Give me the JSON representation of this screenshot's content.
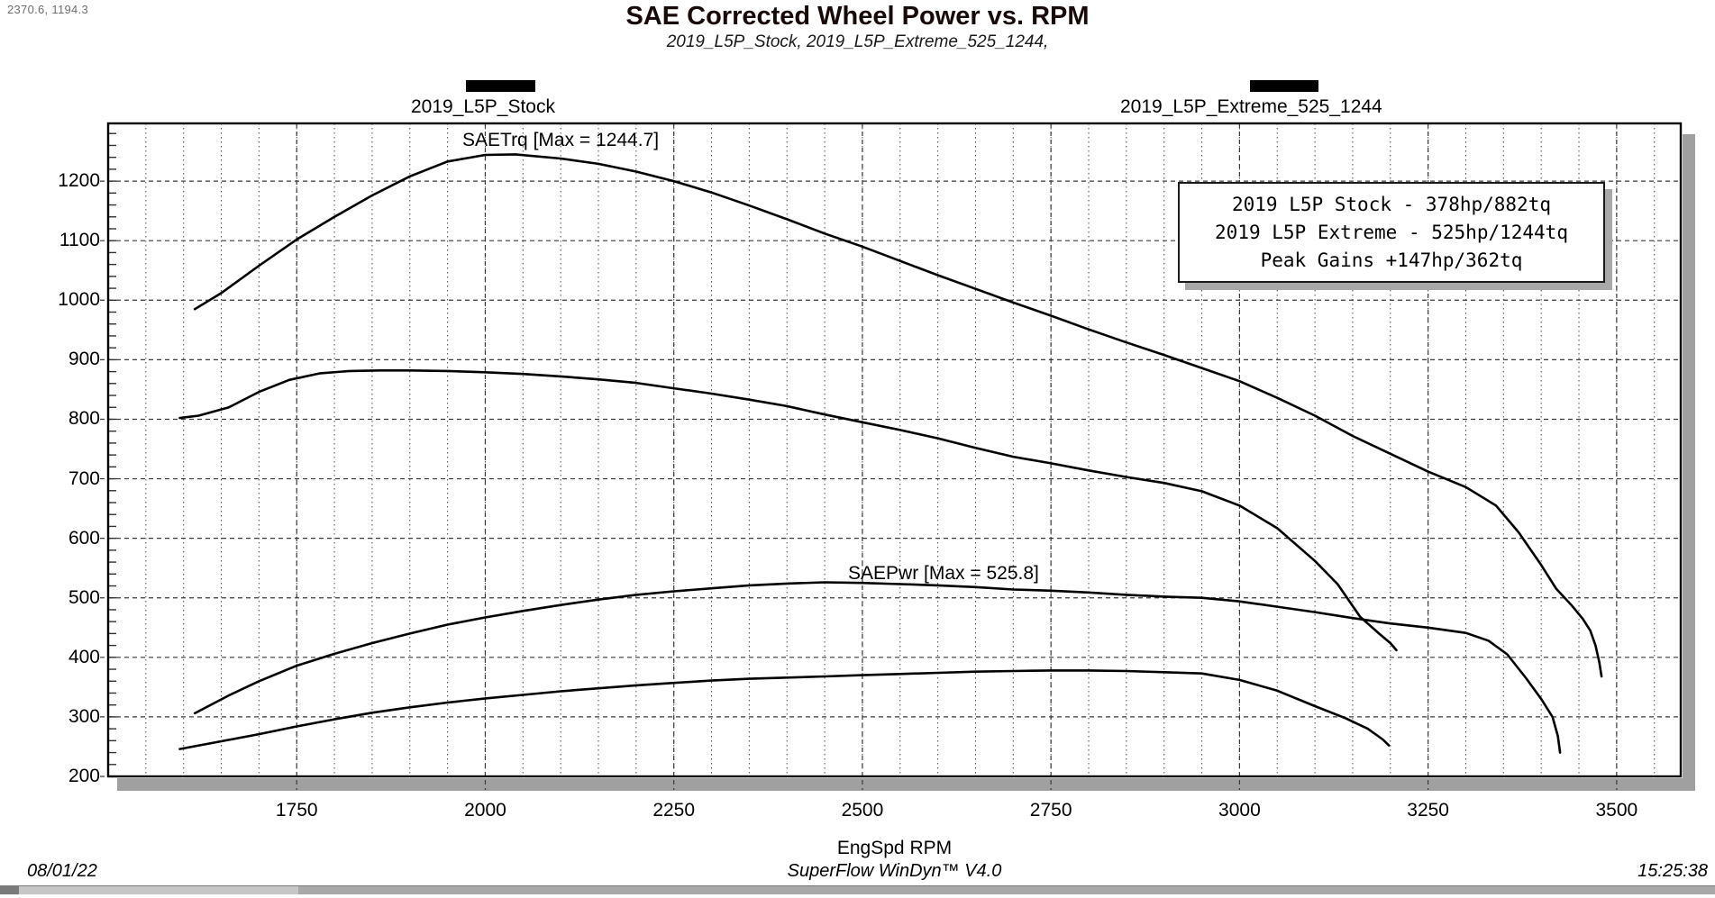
{
  "window": {
    "cursor_readout": "2370.6, 1194.3"
  },
  "header": {
    "title": "SAE Corrected Wheel Power vs. RPM",
    "subtitle": "2019_L5P_Stock, 2019_L5P_Extreme_525_1244,"
  },
  "legend": {
    "items": [
      {
        "label": "2019_L5P_Stock",
        "swatch_color": "#000000"
      },
      {
        "label": "2019_L5P_Extreme_525_1244",
        "swatch_color": "#000000"
      }
    ]
  },
  "annotations": {
    "torque_max_label": "SAETrq [Max = 1244.7]",
    "power_max_label": "SAEPwr [Max = 525.8]"
  },
  "info_box": {
    "lines": [
      "2019 L5P Stock - 378hp/882tq",
      "2019 L5P Extreme - 525hp/1244tq",
      "Peak Gains +147hp/362tq"
    ]
  },
  "chart_data": {
    "type": "line",
    "title": "SAE Corrected Wheel Power vs. RPM",
    "xlabel": "EngSpd RPM",
    "ylabel": "",
    "xlim": [
      1500,
      3585
    ],
    "ylim": [
      200,
      1297
    ],
    "x_ticks": [
      1750,
      2000,
      2250,
      2500,
      2750,
      3000,
      3250,
      3500
    ],
    "y_ticks": [
      200,
      300,
      400,
      500,
      600,
      700,
      800,
      900,
      1000,
      1100,
      1200
    ],
    "x_minor_step": 50,
    "y_minor_step": 20,
    "grid": true,
    "line_color": "#000000",
    "series": [
      {
        "name": "SAETrq 2019_L5P_Extreme_525_1244",
        "peak": 1244.7,
        "points": [
          [
            1615,
            985
          ],
          [
            1650,
            1012
          ],
          [
            1700,
            1058
          ],
          [
            1750,
            1102
          ],
          [
            1800,
            1140
          ],
          [
            1850,
            1176
          ],
          [
            1900,
            1208
          ],
          [
            1950,
            1233
          ],
          [
            2000,
            1244
          ],
          [
            2040,
            1245
          ],
          [
            2100,
            1238
          ],
          [
            2150,
            1229
          ],
          [
            2200,
            1216
          ],
          [
            2250,
            1200
          ],
          [
            2300,
            1181
          ],
          [
            2350,
            1159
          ],
          [
            2400,
            1136
          ],
          [
            2450,
            1112
          ],
          [
            2500,
            1090
          ],
          [
            2550,
            1066
          ],
          [
            2600,
            1042
          ],
          [
            2650,
            1019
          ],
          [
            2700,
            996
          ],
          [
            2750,
            974
          ],
          [
            2800,
            951
          ],
          [
            2850,
            929
          ],
          [
            2900,
            908
          ],
          [
            2950,
            886
          ],
          [
            3000,
            864
          ],
          [
            3050,
            836
          ],
          [
            3100,
            806
          ],
          [
            3150,
            772
          ],
          [
            3200,
            742
          ],
          [
            3250,
            712
          ],
          [
            3300,
            686
          ],
          [
            3340,
            655
          ],
          [
            3370,
            610
          ],
          [
            3400,
            555
          ],
          [
            3420,
            515
          ],
          [
            3440,
            488
          ],
          [
            3455,
            465
          ],
          [
            3465,
            445
          ],
          [
            3472,
            420
          ],
          [
            3477,
            392
          ],
          [
            3480,
            368
          ]
        ]
      },
      {
        "name": "SAETrq 2019_L5P_Stock",
        "peak": 882,
        "points": [
          [
            1595,
            802
          ],
          [
            1620,
            806
          ],
          [
            1660,
            820
          ],
          [
            1700,
            846
          ],
          [
            1740,
            866
          ],
          [
            1780,
            877
          ],
          [
            1820,
            881
          ],
          [
            1860,
            882
          ],
          [
            1900,
            882
          ],
          [
            1950,
            881
          ],
          [
            2000,
            879
          ],
          [
            2050,
            876
          ],
          [
            2100,
            872
          ],
          [
            2150,
            867
          ],
          [
            2200,
            861
          ],
          [
            2250,
            852
          ],
          [
            2300,
            843
          ],
          [
            2350,
            833
          ],
          [
            2400,
            822
          ],
          [
            2450,
            808
          ],
          [
            2500,
            795
          ],
          [
            2550,
            782
          ],
          [
            2600,
            768
          ],
          [
            2650,
            752
          ],
          [
            2700,
            737
          ],
          [
            2750,
            726
          ],
          [
            2800,
            714
          ],
          [
            2850,
            703
          ],
          [
            2900,
            693
          ],
          [
            2950,
            679
          ],
          [
            3000,
            655
          ],
          [
            3050,
            617
          ],
          [
            3100,
            562
          ],
          [
            3130,
            523
          ],
          [
            3160,
            468
          ],
          [
            3185,
            440
          ],
          [
            3200,
            424
          ],
          [
            3208,
            412
          ]
        ]
      },
      {
        "name": "SAEPwr 2019_L5P_Extreme_525_1244",
        "peak": 525.8,
        "points": [
          [
            1615,
            306
          ],
          [
            1660,
            336
          ],
          [
            1700,
            360
          ],
          [
            1750,
            386
          ],
          [
            1800,
            406
          ],
          [
            1850,
            424
          ],
          [
            1900,
            440
          ],
          [
            1950,
            455
          ],
          [
            2000,
            467
          ],
          [
            2050,
            478
          ],
          [
            2100,
            488
          ],
          [
            2150,
            497
          ],
          [
            2200,
            505
          ],
          [
            2250,
            511
          ],
          [
            2300,
            516
          ],
          [
            2350,
            521
          ],
          [
            2400,
            524
          ],
          [
            2450,
            526
          ],
          [
            2500,
            525
          ],
          [
            2550,
            523
          ],
          [
            2600,
            521
          ],
          [
            2650,
            518
          ],
          [
            2700,
            514
          ],
          [
            2750,
            512
          ],
          [
            2800,
            509
          ],
          [
            2850,
            505
          ],
          [
            2900,
            502
          ],
          [
            2950,
            500
          ],
          [
            3000,
            494
          ],
          [
            3050,
            485
          ],
          [
            3100,
            476
          ],
          [
            3150,
            466
          ],
          [
            3200,
            457
          ],
          [
            3250,
            450
          ],
          [
            3300,
            441
          ],
          [
            3330,
            428
          ],
          [
            3355,
            405
          ],
          [
            3380,
            365
          ],
          [
            3400,
            330
          ],
          [
            3415,
            300
          ],
          [
            3422,
            268
          ],
          [
            3425,
            240
          ]
        ]
      },
      {
        "name": "SAEPwr 2019_L5P_Stock",
        "peak": 378,
        "points": [
          [
            1595,
            246
          ],
          [
            1650,
            259
          ],
          [
            1700,
            271
          ],
          [
            1750,
            284
          ],
          [
            1800,
            296
          ],
          [
            1850,
            307
          ],
          [
            1900,
            316
          ],
          [
            1950,
            324
          ],
          [
            2000,
            331
          ],
          [
            2050,
            337
          ],
          [
            2100,
            343
          ],
          [
            2150,
            348
          ],
          [
            2200,
            353
          ],
          [
            2250,
            357
          ],
          [
            2300,
            361
          ],
          [
            2350,
            364
          ],
          [
            2400,
            366
          ],
          [
            2450,
            368
          ],
          [
            2500,
            370
          ],
          [
            2550,
            372
          ],
          [
            2600,
            374
          ],
          [
            2650,
            376
          ],
          [
            2700,
            377
          ],
          [
            2750,
            378
          ],
          [
            2800,
            378
          ],
          [
            2850,
            377
          ],
          [
            2900,
            375
          ],
          [
            2950,
            373
          ],
          [
            3000,
            362
          ],
          [
            3050,
            344
          ],
          [
            3100,
            318
          ],
          [
            3140,
            298
          ],
          [
            3170,
            280
          ],
          [
            3190,
            262
          ],
          [
            3198,
            252
          ]
        ]
      }
    ]
  },
  "footer": {
    "date": "08/01/22",
    "app_version": "SuperFlow WinDyn™ V4.0",
    "time": "15:25:38"
  },
  "colors": {
    "shadow": "#a0a0a0",
    "grid_major": "#3a3a3a",
    "grid_minor": "#4a4a4a",
    "plot_border": "#000000"
  }
}
